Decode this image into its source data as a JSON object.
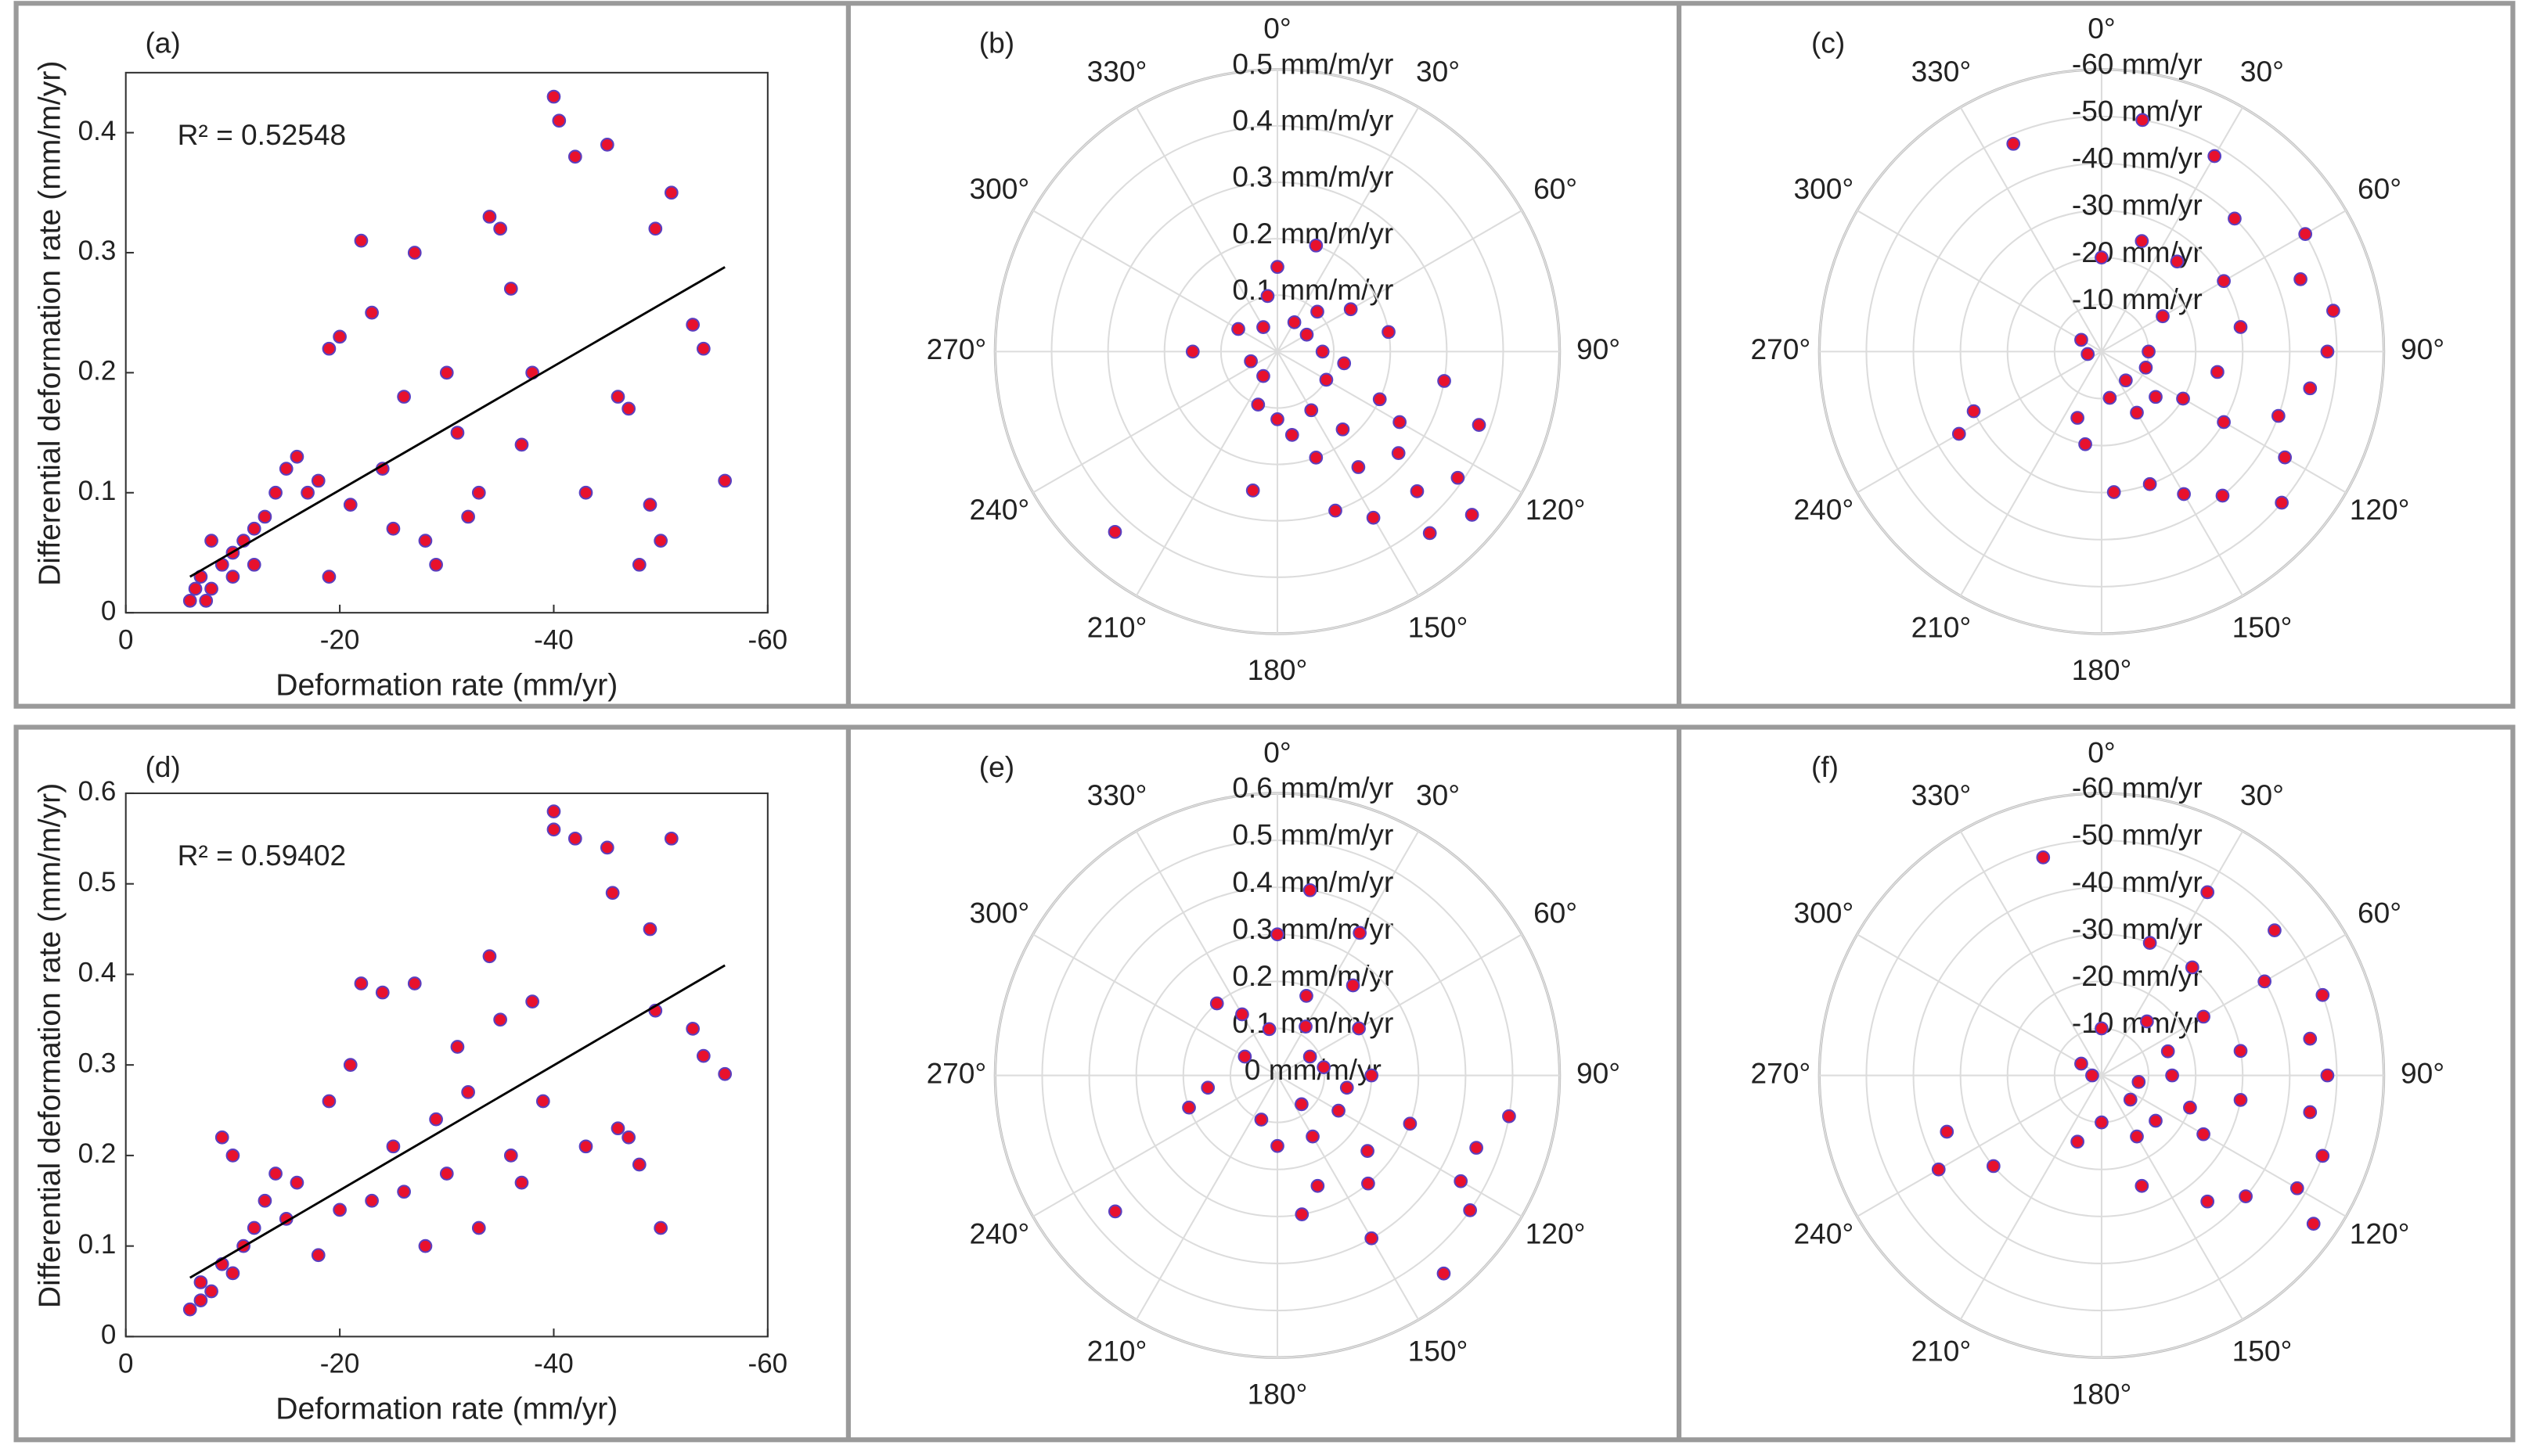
{
  "chart_data": [
    {
      "type": "scatter",
      "label": "(a)",
      "annotation": "R² = 0.52548",
      "xlabel": "Deformation rate (mm/yr)",
      "ylabel": "Differential deformation rate (mm/m/yr)",
      "x": [
        -6,
        -7,
        -8,
        -9,
        -10,
        -10,
        -11,
        -12,
        -13,
        -14,
        -15,
        -16,
        -17,
        -18,
        -19,
        -20,
        -19,
        -21,
        -22,
        -23,
        -24,
        -25,
        -26,
        -27,
        -28,
        -29,
        -30,
        -31,
        -32,
        -33,
        -34,
        -35,
        -36,
        -37,
        -38,
        -40,
        -40.5,
        -42,
        -43,
        -45,
        -46,
        -47,
        -48,
        -49,
        -49.5,
        -50,
        -51,
        -53,
        -54,
        -56,
        -8,
        -12,
        -6.5,
        -7.5
      ],
      "y": [
        0.01,
        0.03,
        0.02,
        0.04,
        0.05,
        0.03,
        0.06,
        0.07,
        0.08,
        0.1,
        0.12,
        0.13,
        0.1,
        0.11,
        0.22,
        0.23,
        0.03,
        0.09,
        0.31,
        0.25,
        0.12,
        0.07,
        0.18,
        0.3,
        0.06,
        0.04,
        0.2,
        0.15,
        0.08,
        0.1,
        0.33,
        0.32,
        0.27,
        0.14,
        0.2,
        0.43,
        0.41,
        0.38,
        0.1,
        0.39,
        0.18,
        0.17,
        0.04,
        0.09,
        0.32,
        0.06,
        0.35,
        0.24,
        0.22,
        0.11,
        0.06,
        0.04,
        0.02,
        0.01
      ],
      "fit": {
        "x": [
          -6,
          -56
        ],
        "y": [
          0.03,
          0.288
        ]
      },
      "xlim": [
        0,
        -60
      ],
      "xticks": [
        0,
        -20,
        -40,
        -60
      ],
      "ylim": [
        0,
        0.45
      ],
      "yticks": [
        0,
        0.1,
        0.2,
        0.3,
        0.4
      ],
      "color": "#e8112d",
      "edgecolor": "#5a3fc0"
    },
    {
      "type": "polar",
      "label": "(b)",
      "theta": [
        222,
        125,
        135,
        110,
        140,
        150,
        130,
        120,
        145,
        160,
        100,
        80,
        60,
        20,
        0,
        350,
        300,
        270,
        250,
        200,
        180,
        170,
        150,
        120,
        90,
        60,
        30,
        330,
        210,
        190,
        160,
        130,
        100,
        140,
        115,
        45
      ],
      "r": [
        0.43,
        0.39,
        0.35,
        0.38,
        0.42,
        0.34,
        0.28,
        0.25,
        0.25,
        0.2,
        0.3,
        0.2,
        0.15,
        0.2,
        0.15,
        0.1,
        0.08,
        0.15,
        0.05,
        0.1,
        0.12,
        0.15,
        0.12,
        0.1,
        0.08,
        0.06,
        0.06,
        0.05,
        0.05,
        0.25,
        0.3,
        0.45,
        0.12,
        0.18,
        0.2,
        0.1
      ],
      "rlim": [
        0,
        0.5
      ],
      "rticks": [
        {
          "value": 0.1,
          "label": "0.1 mm/m/yr"
        },
        {
          "value": 0.2,
          "label": "0.2 mm/m/yr"
        },
        {
          "value": 0.3,
          "label": "0.3 mm/m/yr"
        },
        {
          "value": 0.4,
          "label": "0.4 mm/m/yr"
        },
        {
          "value": 0.5,
          "label": "0.5 mm/m/yr"
        }
      ],
      "thetaticks": [
        {
          "value": 0,
          "label": "0°"
        },
        {
          "value": 30,
          "label": "30°"
        },
        {
          "value": 60,
          "label": "60°"
        },
        {
          "value": 90,
          "label": "90°"
        },
        {
          "value": 120,
          "label": "120°"
        },
        {
          "value": 150,
          "label": "150°"
        },
        {
          "value": 180,
          "label": "180°"
        },
        {
          "value": 210,
          "label": "210°"
        },
        {
          "value": 240,
          "label": "240°"
        },
        {
          "value": 270,
          "label": "270°"
        },
        {
          "value": 300,
          "label": "300°"
        },
        {
          "value": 330,
          "label": "330°"
        }
      ],
      "color": "#e8112d",
      "edgecolor": "#5a3fc0"
    },
    {
      "type": "polar",
      "label": "(c)",
      "theta": [
        337,
        10,
        30,
        45,
        60,
        70,
        80,
        90,
        100,
        110,
        120,
        130,
        140,
        150,
        160,
        175,
        190,
        200,
        240,
        245,
        260,
        300,
        0,
        20,
        40,
        60,
        80,
        100,
        120,
        130,
        150,
        170,
        110,
        90,
        140,
        120,
        60
      ],
      "r": [
        -48,
        -50,
        -48,
        -40,
        -50,
        -45,
        -50,
        -48,
        -45,
        -40,
        -45,
        -50,
        -40,
        -35,
        -30,
        -30,
        -20,
        -15,
        -35,
        -30,
        -3,
        -5,
        -20,
        -25,
        -25,
        -30,
        -30,
        -25,
        -20,
        -15,
        -15,
        -10,
        -10,
        -10,
        -8,
        -30,
        -15
      ],
      "rlim": [
        0,
        -60
      ],
      "rticks": [
        {
          "value": -10,
          "label": "-10 mm/yr"
        },
        {
          "value": -20,
          "label": "-20 mm/yr"
        },
        {
          "value": -30,
          "label": "-30 mm/yr"
        },
        {
          "value": -40,
          "label": "-40 mm/yr"
        },
        {
          "value": -50,
          "label": "-50 mm/yr"
        },
        {
          "value": -60,
          "label": "-60 mm/yr"
        }
      ],
      "thetaticks": [
        {
          "value": 0,
          "label": "0°"
        },
        {
          "value": 30,
          "label": "30°"
        },
        {
          "value": 60,
          "label": "60°"
        },
        {
          "value": 90,
          "label": "90°"
        },
        {
          "value": 120,
          "label": "120°"
        },
        {
          "value": 150,
          "label": "150°"
        },
        {
          "value": 180,
          "label": "180°"
        },
        {
          "value": 210,
          "label": "210°"
        },
        {
          "value": 240,
          "label": "240°"
        },
        {
          "value": 270,
          "label": "270°"
        },
        {
          "value": 300,
          "label": "300°"
        },
        {
          "value": 330,
          "label": "330°"
        }
      ],
      "color": "#e8112d",
      "edgecolor": "#5a3fc0"
    },
    {
      "type": "scatter",
      "label": "(d)",
      "annotation": "R² = 0.59402",
      "xlabel": "Deformation rate (mm/yr)",
      "ylabel": "Differential deformation rate (mm/m/yr)",
      "x": [
        -6,
        -7,
        -8,
        -9,
        -9,
        -10,
        -11,
        -12,
        -13,
        -14,
        -15,
        -16,
        -18,
        -19,
        -20,
        -21,
        -22,
        -23,
        -24,
        -25,
        -26,
        -27,
        -28,
        -29,
        -30,
        -31,
        -32,
        -33,
        -34,
        -35,
        -36,
        -37,
        -38,
        -39,
        -40,
        -40,
        -42,
        -43,
        -45,
        -45.5,
        -46,
        -47,
        -48,
        -49,
        -49.5,
        -50,
        -51,
        -53,
        -54,
        -56,
        -7,
        -10
      ],
      "y": [
        0.03,
        0.06,
        0.05,
        0.08,
        0.22,
        0.2,
        0.1,
        0.12,
        0.15,
        0.18,
        0.13,
        0.17,
        0.09,
        0.26,
        0.14,
        0.3,
        0.39,
        0.15,
        0.38,
        0.21,
        0.16,
        0.39,
        0.1,
        0.24,
        0.18,
        0.32,
        0.27,
        0.12,
        0.42,
        0.35,
        0.2,
        0.17,
        0.37,
        0.26,
        0.58,
        0.56,
        0.55,
        0.21,
        0.54,
        0.49,
        0.23,
        0.22,
        0.19,
        0.45,
        0.36,
        0.12,
        0.55,
        0.34,
        0.31,
        0.29,
        0.04,
        0.07
      ],
      "fit": {
        "x": [
          -6,
          -56
        ],
        "y": [
          0.065,
          0.41
        ]
      },
      "xlim": [
        0,
        -60
      ],
      "xticks": [
        0,
        -20,
        -40,
        -60
      ],
      "ylim": [
        0,
        0.6
      ],
      "yticks": [
        0,
        0.1,
        0.2,
        0.3,
        0.4,
        0.5,
        0.6
      ],
      "color": "#e8112d",
      "edgecolor": "#5a3fc0"
    },
    {
      "type": "polar",
      "label": "(e)",
      "theta": [
        230,
        250,
        260,
        300,
        0,
        10,
        30,
        40,
        60,
        90,
        100,
        110,
        120,
        125,
        140,
        150,
        160,
        170,
        140,
        130,
        110,
        100,
        80,
        60,
        30,
        350,
        330,
        320,
        200,
        180,
        150,
        120,
        140,
        20
      ],
      "r": [
        0.45,
        0.2,
        0.15,
        0.08,
        0.3,
        0.4,
        0.35,
        0.25,
        0.2,
        0.2,
        0.5,
        0.45,
        0.45,
        0.5,
        0.55,
        0.4,
        0.25,
        0.3,
        0.3,
        0.25,
        0.3,
        0.15,
        0.1,
        0.08,
        0.12,
        0.1,
        0.15,
        0.2,
        0.1,
        0.15,
        0.15,
        0.15,
        0.08,
        0.18
      ],
      "rlim": [
        0,
        0.6
      ],
      "rticks": [
        {
          "value": 0,
          "label": "0 mm/m/yr"
        },
        {
          "value": 0.1,
          "label": "0.1 mm/m/yr"
        },
        {
          "value": 0.2,
          "label": "0.2 mm/m/yr"
        },
        {
          "value": 0.3,
          "label": "0.3 mm/m/yr"
        },
        {
          "value": 0.4,
          "label": "0.4 mm/m/yr"
        },
        {
          "value": 0.5,
          "label": "0.5 mm/m/yr"
        },
        {
          "value": 0.6,
          "label": "0.6 mm/m/yr"
        }
      ],
      "thetaticks": [
        {
          "value": 0,
          "label": "0°"
        },
        {
          "value": 30,
          "label": "30°"
        },
        {
          "value": 60,
          "label": "60°"
        },
        {
          "value": 90,
          "label": "90°"
        },
        {
          "value": 120,
          "label": "120°"
        },
        {
          "value": 150,
          "label": "150°"
        },
        {
          "value": 180,
          "label": "180°"
        },
        {
          "value": 210,
          "label": "210°"
        },
        {
          "value": 240,
          "label": "240°"
        },
        {
          "value": 270,
          "label": "270°"
        },
        {
          "value": 300,
          "label": "300°"
        },
        {
          "value": 330,
          "label": "330°"
        }
      ],
      "color": "#e8112d",
      "edgecolor": "#5a3fc0"
    },
    {
      "type": "polar",
      "label": "(f)",
      "theta": [
        345,
        30,
        50,
        60,
        70,
        80,
        90,
        100,
        110,
        120,
        125,
        130,
        140,
        160,
        180,
        200,
        230,
        240,
        250,
        270,
        300,
        0,
        20,
        40,
        60,
        80,
        100,
        110,
        120,
        130,
        150,
        90,
        70,
        100,
        130,
        40
      ],
      "r": [
        -48,
        -45,
        -48,
        -40,
        -50,
        -45,
        -48,
        -45,
        -50,
        -48,
        -55,
        -40,
        -35,
        -25,
        -10,
        -15,
        -30,
        -40,
        -35,
        -2,
        -5,
        -10,
        -30,
        -30,
        -25,
        -30,
        -30,
        -20,
        -25,
        -15,
        -15,
        -15,
        -15,
        -8,
        -8,
        -15
      ],
      "rlim": [
        0,
        -60
      ],
      "rticks": [
        {
          "value": -10,
          "label": "-10 mm/yr"
        },
        {
          "value": -20,
          "label": "-20 mm/yr"
        },
        {
          "value": -30,
          "label": "-30 mm/yr"
        },
        {
          "value": -40,
          "label": "-40 mm/yr"
        },
        {
          "value": -50,
          "label": "-50 mm/yr"
        },
        {
          "value": -60,
          "label": "-60 mm/yr"
        }
      ],
      "thetaticks": [
        {
          "value": 0,
          "label": "0°"
        },
        {
          "value": 30,
          "label": "30°"
        },
        {
          "value": 60,
          "label": "60°"
        },
        {
          "value": 90,
          "label": "90°"
        },
        {
          "value": 120,
          "label": "120°"
        },
        {
          "value": 150,
          "label": "150°"
        },
        {
          "value": 180,
          "label": "180°"
        },
        {
          "value": 210,
          "label": "210°"
        },
        {
          "value": 240,
          "label": "240°"
        },
        {
          "value": 270,
          "label": "270°"
        },
        {
          "value": 300,
          "label": "300°"
        },
        {
          "value": 330,
          "label": "330°"
        }
      ],
      "color": "#e8112d",
      "edgecolor": "#5a3fc0"
    }
  ]
}
